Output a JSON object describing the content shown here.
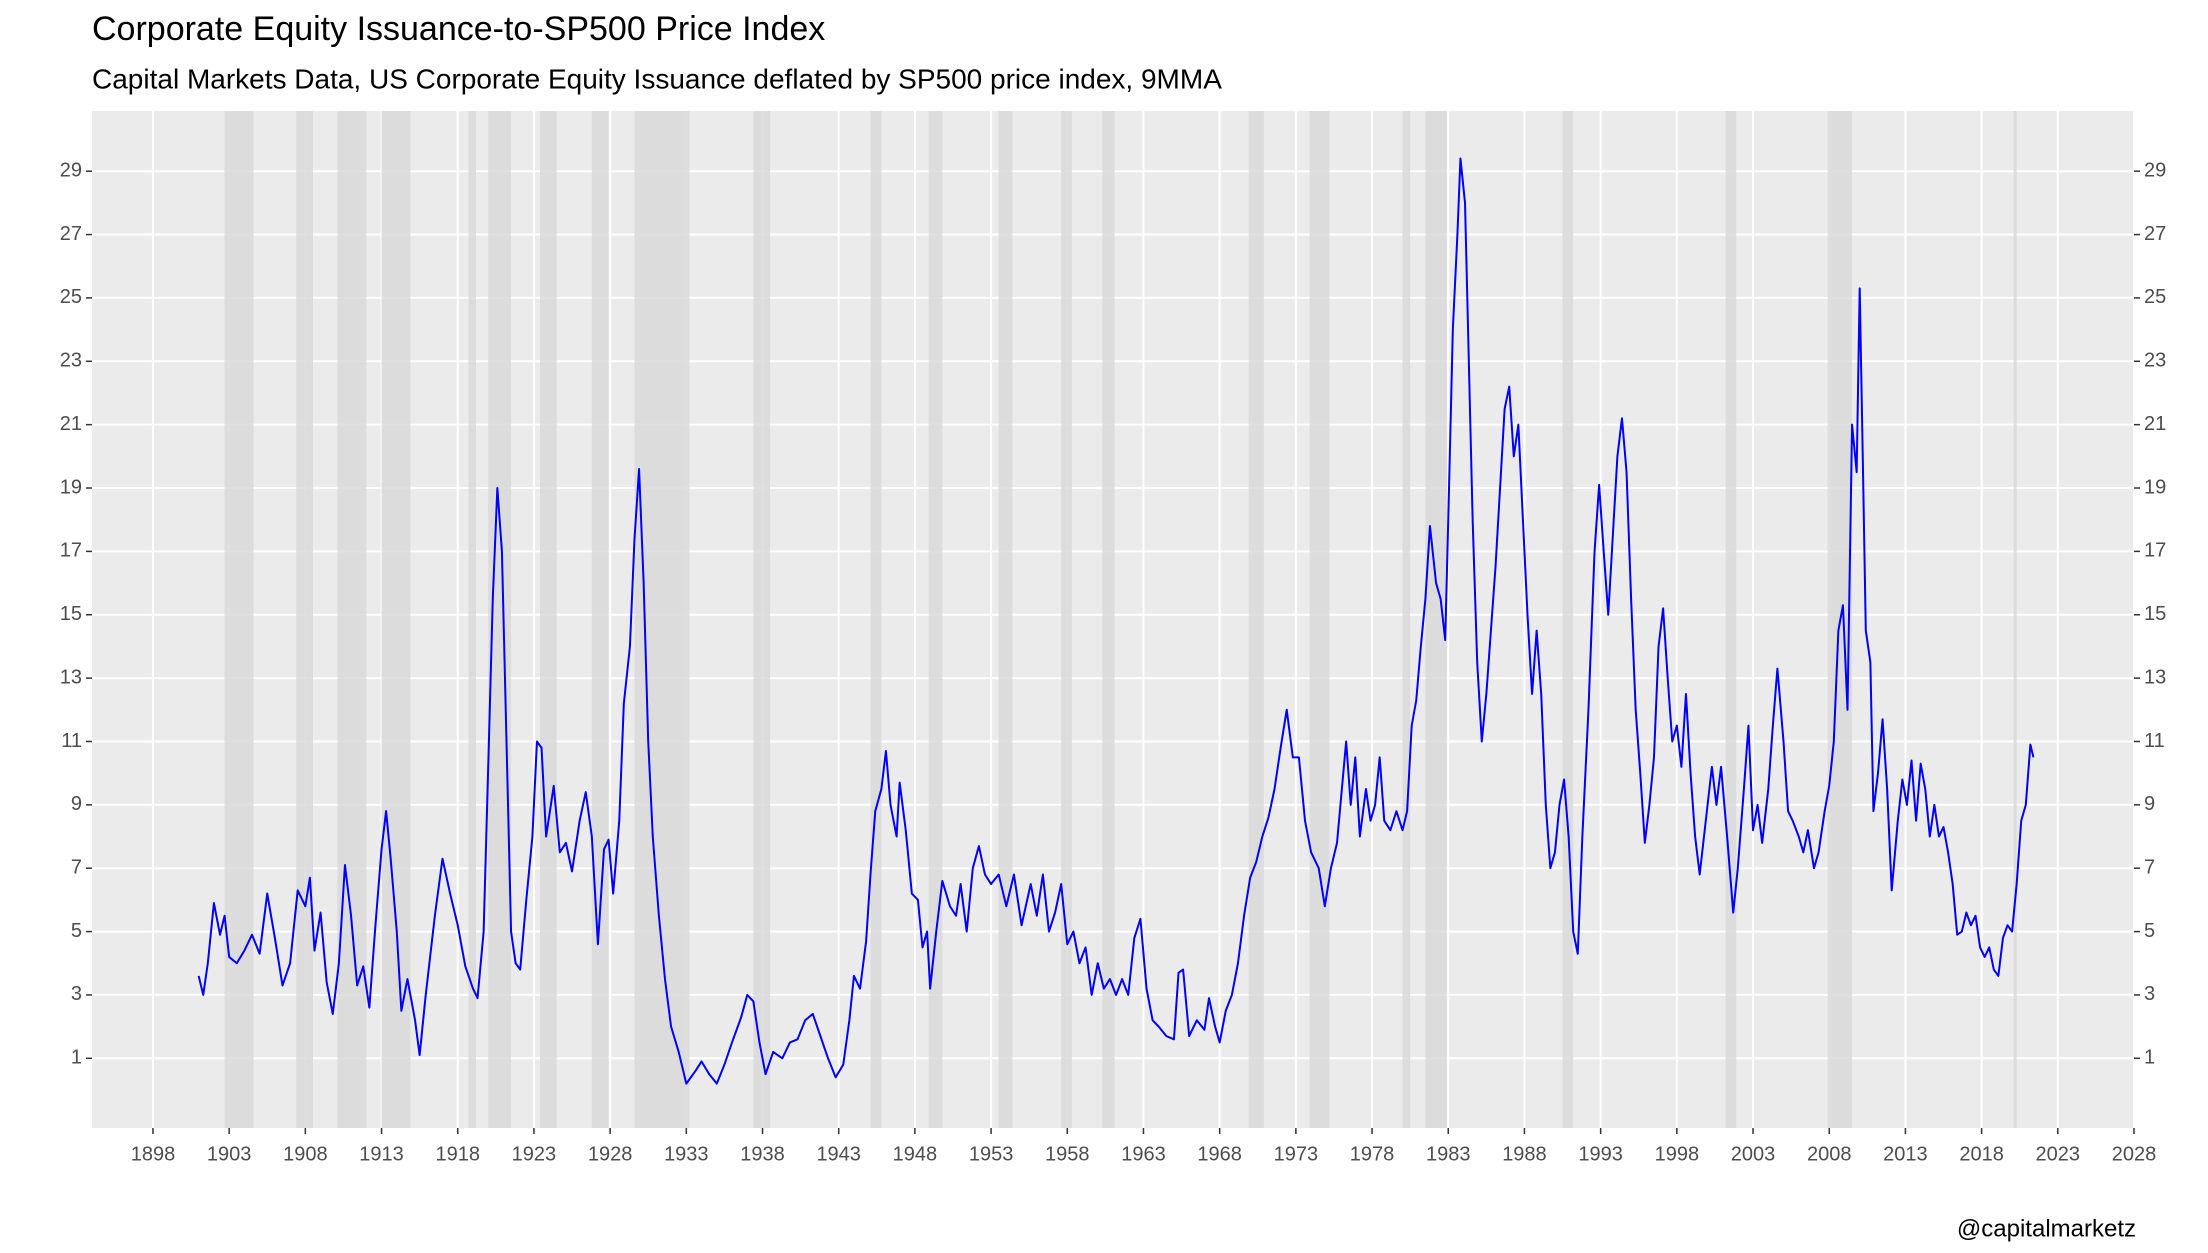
{
  "chart_data": {
    "type": "line",
    "title": "Corporate Equity Issuance-to-SP500 Price Index",
    "subtitle": "Capital Markets Data, US Corporate Equity Issuance deflated by SP500 price index, 9MMA",
    "caption": "@capitalmarketz",
    "color": "#0000ff",
    "recession_color": "#d9d9d9",
    "grid": true,
    "xlim": [
      1894,
      2028
    ],
    "xticks": [
      1898,
      1903,
      1908,
      1913,
      1918,
      1923,
      1928,
      1933,
      1938,
      1943,
      1948,
      1953,
      1958,
      1963,
      1968,
      1973,
      1978,
      1983,
      1988,
      1993,
      1998,
      2003,
      2008,
      2013,
      2018,
      2023,
      2028
    ],
    "ylim": [
      -1.2,
      30.9
    ],
    "yticks": [
      1,
      3,
      5,
      7,
      9,
      11,
      13,
      15,
      17,
      19,
      21,
      23,
      25,
      27,
      29
    ],
    "y2lim": [
      -1.2,
      30.9
    ],
    "y2ticks": [
      1,
      3,
      5,
      7,
      9,
      11,
      13,
      15,
      17,
      19,
      21,
      23,
      25,
      27,
      29
    ],
    "recessions": [
      [
        1902.7,
        1904.6
      ],
      [
        1907.4,
        1908.5
      ],
      [
        1910.1,
        1912.0
      ],
      [
        1913.0,
        1914.9
      ],
      [
        1918.7,
        1919.2
      ],
      [
        1920.0,
        1921.5
      ],
      [
        1923.4,
        1924.5
      ],
      [
        1926.8,
        1927.9
      ],
      [
        1929.6,
        1933.2
      ],
      [
        1937.4,
        1938.5
      ],
      [
        1945.1,
        1945.8
      ],
      [
        1948.9,
        1949.8
      ],
      [
        1953.5,
        1954.4
      ],
      [
        1957.6,
        1958.3
      ],
      [
        1960.3,
        1961.1
      ],
      [
        1969.9,
        1970.9
      ],
      [
        1973.9,
        1975.2
      ],
      [
        1980.0,
        1980.5
      ],
      [
        1981.5,
        1982.9
      ],
      [
        1990.5,
        1991.2
      ],
      [
        2001.2,
        2001.9
      ],
      [
        2007.9,
        2009.5
      ],
      [
        2020.1,
        2020.3
      ]
    ],
    "x": [
      1901.0,
      1901.3,
      1901.6,
      1902.0,
      1902.4,
      1902.7,
      1903.0,
      1903.5,
      1904.0,
      1904.5,
      1905.0,
      1905.5,
      1906.0,
      1906.5,
      1907.0,
      1907.5,
      1908.0,
      1908.3,
      1908.6,
      1909.0,
      1909.4,
      1909.8,
      1910.2,
      1910.6,
      1911.0,
      1911.4,
      1911.8,
      1912.2,
      1912.6,
      1913.0,
      1913.3,
      1913.6,
      1914.0,
      1914.3,
      1914.7,
      1915.2,
      1915.5,
      1915.9,
      1916.5,
      1917.0,
      1917.5,
      1918.0,
      1918.5,
      1919.0,
      1919.3,
      1919.7,
      1920.0,
      1920.3,
      1920.6,
      1920.9,
      1921.2,
      1921.5,
      1921.8,
      1922.1,
      1922.5,
      1922.9,
      1923.2,
      1923.5,
      1923.8,
      1924.3,
      1924.7,
      1925.1,
      1925.5,
      1926.0,
      1926.4,
      1926.8,
      1927.2,
      1927.6,
      1927.9,
      1928.2,
      1928.6,
      1928.9,
      1929.3,
      1929.6,
      1929.9,
      1930.2,
      1930.5,
      1930.8,
      1931.2,
      1931.6,
      1932.0,
      1932.5,
      1933.0,
      1933.6,
      1934.0,
      1934.5,
      1935.0,
      1935.5,
      1936.0,
      1936.6,
      1937.0,
      1937.4,
      1937.8,
      1938.2,
      1938.7,
      1939.3,
      1939.8,
      1940.3,
      1940.8,
      1941.3,
      1941.8,
      1942.3,
      1942.8,
      1943.3,
      1943.7,
      1944.0,
      1944.4,
      1944.8,
      1945.1,
      1945.4,
      1945.8,
      1946.1,
      1946.4,
      1946.8,
      1947.0,
      1947.4,
      1947.8,
      1948.2,
      1948.5,
      1948.8,
      1949.0,
      1949.4,
      1949.8,
      1950.3,
      1950.7,
      1951.0,
      1951.4,
      1951.8,
      1952.2,
      1952.6,
      1953.0,
      1953.5,
      1954.0,
      1954.5,
      1955.0,
      1955.6,
      1956.0,
      1956.4,
      1956.8,
      1957.2,
      1957.6,
      1958.0,
      1958.4,
      1958.8,
      1959.2,
      1959.6,
      1960.0,
      1960.4,
      1960.8,
      1961.2,
      1961.6,
      1962.0,
      1962.4,
      1962.8,
      1963.2,
      1963.6,
      1964.0,
      1964.5,
      1965.0,
      1965.3,
      1965.6,
      1966.0,
      1966.5,
      1967.0,
      1967.3,
      1967.7,
      1968.0,
      1968.4,
      1968.8,
      1969.2,
      1969.6,
      1970.0,
      1970.4,
      1970.8,
      1971.2,
      1971.6,
      1972.0,
      1972.4,
      1972.8,
      1973.2,
      1973.6,
      1974.0,
      1974.5,
      1974.9,
      1975.3,
      1975.7,
      1976.0,
      1976.3,
      1976.6,
      1976.9,
      1977.2,
      1977.6,
      1977.9,
      1978.2,
      1978.5,
      1978.8,
      1979.2,
      1979.6,
      1980.0,
      1980.3,
      1980.6,
      1980.9,
      1981.2,
      1981.5,
      1981.8,
      1982.2,
      1982.5,
      1982.8,
      1983.0,
      1983.3,
      1983.6,
      1983.8,
      1984.1,
      1984.3,
      1984.6,
      1984.9,
      1985.2,
      1985.5,
      1985.8,
      1986.1,
      1986.4,
      1986.7,
      1987.0,
      1987.3,
      1987.6,
      1987.9,
      1988.2,
      1988.5,
      1988.8,
      1989.1,
      1989.4,
      1989.7,
      1990.0,
      1990.3,
      1990.6,
      1990.9,
      1991.2,
      1991.5,
      1991.8,
      1992.2,
      1992.6,
      1992.9,
      1993.2,
      1993.5,
      1993.8,
      1994.1,
      1994.4,
      1994.7,
      1995.0,
      1995.3,
      1995.6,
      1995.9,
      1996.2,
      1996.5,
      1996.8,
      1997.1,
      1997.4,
      1997.7,
      1998.0,
      1998.3,
      1998.6,
      1998.9,
      1999.2,
      1999.5,
      1999.9,
      2000.3,
      2000.6,
      2000.9,
      2001.3,
      2001.7,
      2002.0,
      2002.4,
      2002.7,
      2003.0,
      2003.3,
      2003.6,
      2004.0,
      2004.3,
      2004.6,
      2005.0,
      2005.3,
      2005.6,
      2006.0,
      2006.3,
      2006.6,
      2007.0,
      2007.3,
      2007.7,
      2008.0,
      2008.3,
      2008.6,
      2008.9,
      2009.2,
      2009.5,
      2009.8,
      2010.0,
      2010.2,
      2010.4,
      2010.7,
      2010.9,
      2011.2,
      2011.5,
      2011.8,
      2012.1,
      2012.5,
      2012.8,
      2013.1,
      2013.4,
      2013.7,
      2014.0,
      2014.3,
      2014.6,
      2014.9,
      2015.2,
      2015.5,
      2015.8,
      2016.1,
      2016.4,
      2016.7,
      2017.0,
      2017.3,
      2017.6,
      2017.9,
      2018.2,
      2018.5,
      2018.8,
      2019.1,
      2019.4,
      2019.7,
      2020.0,
      2020.3,
      2020.6,
      2020.9,
      2021.2,
      2021.4
    ],
    "values": [
      3.6,
      3.0,
      4.0,
      5.9,
      4.9,
      5.5,
      4.2,
      4.0,
      4.4,
      4.9,
      4.3,
      6.2,
      4.8,
      3.3,
      4.0,
      6.3,
      5.8,
      6.7,
      4.4,
      5.6,
      3.4,
      2.4,
      4.0,
      7.1,
      5.5,
      3.3,
      3.9,
      2.6,
      5.2,
      7.6,
      8.8,
      7.3,
      5.0,
      2.5,
      3.5,
      2.2,
      1.1,
      3.0,
      5.5,
      7.3,
      6.2,
      5.2,
      3.9,
      3.2,
      2.9,
      5.0,
      10.2,
      15.5,
      19.0,
      17.0,
      11.0,
      5.0,
      4.0,
      3.8,
      6.0,
      8.0,
      11.0,
      10.8,
      8.0,
      9.6,
      7.5,
      7.8,
      6.9,
      8.5,
      9.4,
      8.0,
      4.6,
      7.6,
      7.9,
      6.2,
      8.5,
      12.2,
      14.0,
      17.4,
      19.6,
      16.0,
      11.0,
      8.0,
      5.5,
      3.5,
      2.0,
      1.2,
      0.2,
      0.6,
      0.9,
      0.5,
      0.2,
      0.8,
      1.5,
      2.3,
      3.0,
      2.8,
      1.5,
      0.5,
      1.2,
      1.0,
      1.5,
      1.6,
      2.2,
      2.4,
      1.7,
      1.0,
      0.4,
      0.8,
      2.2,
      3.6,
      3.2,
      4.7,
      6.9,
      8.8,
      9.5,
      10.7,
      9.0,
      8.0,
      9.7,
      8.2,
      6.2,
      6.0,
      4.5,
      5.0,
      3.2,
      5.0,
      6.6,
      5.8,
      5.5,
      6.5,
      5.0,
      7.0,
      7.7,
      6.8,
      6.5,
      6.8,
      5.8,
      6.8,
      5.2,
      6.5,
      5.5,
      6.8,
      5.0,
      5.6,
      6.5,
      4.6,
      5.0,
      4.0,
      4.5,
      3.0,
      4.0,
      3.2,
      3.5,
      3.0,
      3.5,
      3.0,
      4.8,
      5.4,
      3.2,
      2.2,
      2.0,
      1.7,
      1.6,
      3.7,
      3.8,
      1.7,
      2.2,
      1.9,
      2.9,
      2.0,
      1.5,
      2.5,
      3.0,
      4.0,
      5.5,
      6.7,
      7.2,
      8.0,
      8.6,
      9.5,
      10.8,
      12.0,
      10.5,
      10.5,
      8.5,
      7.5,
      7.0,
      5.8,
      7.0,
      7.8,
      9.4,
      11.0,
      9.0,
      10.5,
      8.0,
      9.5,
      8.5,
      9.0,
      10.5,
      8.5,
      8.2,
      8.8,
      8.2,
      8.8,
      11.5,
      12.3,
      14.0,
      15.5,
      17.8,
      16.0,
      15.5,
      14.2,
      18.0,
      24.0,
      27.0,
      29.4,
      28.0,
      24.0,
      18.0,
      13.5,
      11.0,
      12.5,
      14.5,
      16.5,
      19.0,
      21.5,
      22.2,
      20.0,
      21.0,
      18.0,
      15.0,
      12.5,
      14.5,
      12.5,
      9.0,
      7.0,
      7.5,
      9.0,
      9.8,
      8.0,
      5.0,
      4.3,
      8.0,
      12.0,
      17.0,
      19.1,
      17.0,
      15.0,
      17.5,
      20.0,
      21.2,
      19.5,
      15.5,
      12.0,
      10.0,
      7.8,
      9.0,
      10.5,
      14.0,
      15.2,
      13.0,
      11.0,
      11.5,
      10.2,
      12.5,
      10.0,
      8.0,
      6.8,
      8.5,
      10.2,
      9.0,
      10.2,
      8.0,
      5.6,
      7.0,
      9.5,
      11.5,
      8.2,
      9.0,
      7.8,
      9.5,
      11.5,
      13.3,
      11.0,
      8.8,
      8.5,
      8.0,
      7.5,
      8.2,
      7.0,
      7.5,
      8.8,
      9.6,
      11.0,
      14.5,
      15.3,
      12.0,
      21.0,
      19.5,
      25.3,
      20.0,
      14.5,
      13.5,
      8.8,
      10.0,
      11.7,
      9.5,
      6.3,
      8.5,
      9.8,
      9.0,
      10.4,
      8.5,
      10.3,
      9.5,
      8.0,
      9.0,
      8.0,
      8.3,
      7.5,
      6.5,
      4.9,
      5.0,
      5.6,
      5.2,
      5.5,
      4.5,
      4.2,
      4.5,
      3.8,
      3.6,
      4.8,
      5.2,
      5.0,
      6.5,
      8.5,
      9.0,
      10.9,
      10.5
    ]
  }
}
